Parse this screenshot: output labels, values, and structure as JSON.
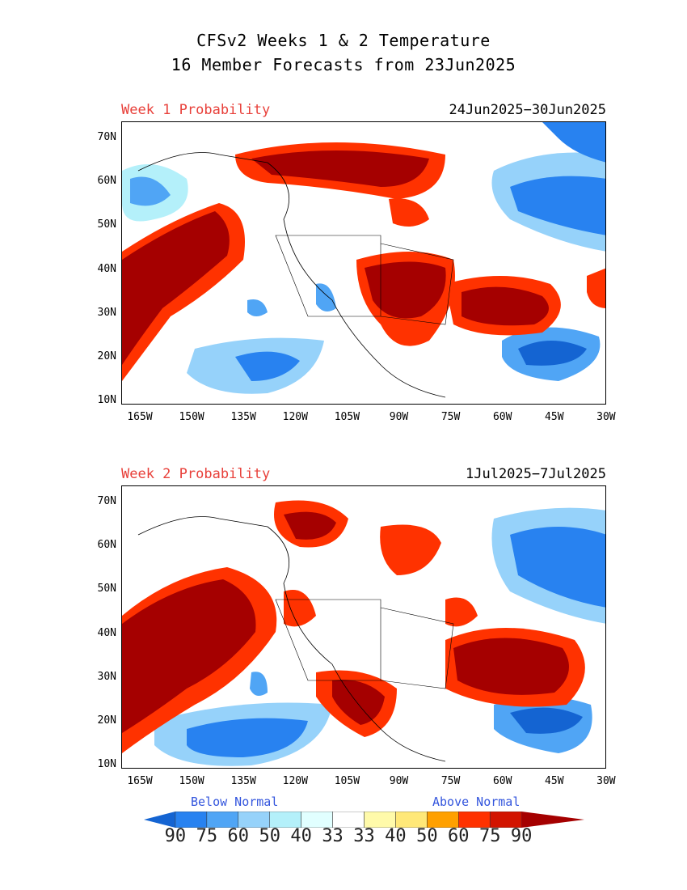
{
  "title_line1": "CFSv2 Weeks 1 & 2 Temperature",
  "title_line2": "16 Member Forecasts from 23Jun2025",
  "panels": [
    {
      "label": "Week 1 Probability",
      "dates": "24Jun2025−30Jun2025"
    },
    {
      "label": "Week 2 Probability",
      "dates": "1Jul2025−7Jul2025"
    }
  ],
  "lat_ticks": [
    "70N",
    "60N",
    "50N",
    "40N",
    "30N",
    "20N",
    "10N"
  ],
  "lon_ticks": [
    "165W",
    "150W",
    "135W",
    "120W",
    "105W",
    "90W",
    "75W",
    "60W",
    "45W",
    "30W"
  ],
  "legend": {
    "below_label": "Below Normal",
    "above_label": "Above Normal",
    "numbers": [
      "90",
      "75",
      "60",
      "50",
      "40",
      "33",
      "33",
      "40",
      "50",
      "60",
      "75",
      "90"
    ],
    "colors": [
      "#1464d2",
      "#2882f0",
      "#50a5f5",
      "#96d2fa",
      "#b4f0fa",
      "#e1ffff",
      "#ffffff",
      "#fffaaa",
      "#ffe878",
      "#ffa000",
      "#ff3200",
      "#d21400",
      "#a50000"
    ]
  }
}
